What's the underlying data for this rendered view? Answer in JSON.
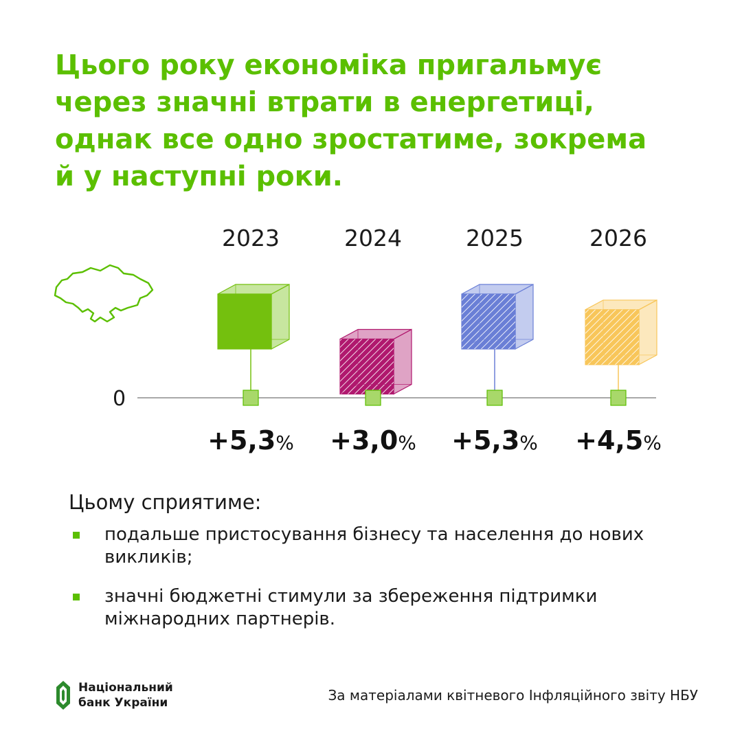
{
  "headline": {
    "lines": [
      "Цього року економіка пригальмує",
      "через значні втрати в енергетиці,",
      "однак все одно зростатиме, зокрема",
      "й у наступні роки."
    ]
  },
  "icons": {
    "map": "ukraine-map-icon",
    "logo": "nbu-logo-icon"
  },
  "chart_data": {
    "type": "bar",
    "categories": [
      "2023",
      "2024",
      "2025",
      "2026"
    ],
    "values": [
      5.3,
      3.0,
      5.3,
      4.5
    ],
    "value_labels": [
      {
        "number": "+5,3",
        "unit": "%"
      },
      {
        "number": "+3,0",
        "unit": "%"
      },
      {
        "number": "+5,3",
        "unit": "%"
      },
      {
        "number": "+4,5",
        "unit": "%"
      }
    ],
    "zero_label": "0",
    "colors": [
      "#74c00e",
      "#b0186e",
      "#6a7fd6",
      "#f8c65a"
    ],
    "hatched": [
      false,
      true,
      true,
      true
    ]
  },
  "reasons": {
    "lead": "Цьому сприятиме:",
    "items": [
      "подальше пристосування бізнесу та населення до нових викликів;",
      "значні бюджетні стимули за збереження підтримки міжнародних партнерів."
    ]
  },
  "footer": {
    "logo_line1": "Національний",
    "logo_line2": "банк України",
    "source": "За матеріалами квітневого Інфляційного звіту НБУ"
  },
  "colors": {
    "accent": "#5bbf00"
  }
}
